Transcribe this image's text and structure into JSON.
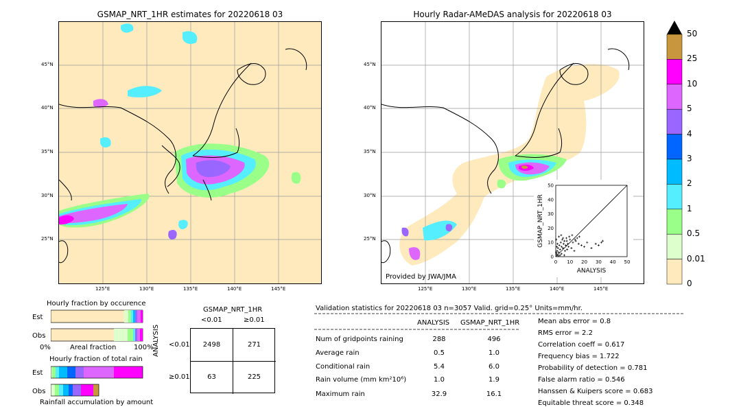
{
  "left_map": {
    "title": "GSMAP_NRT_1HR estimates for 20220618 03",
    "lat_ticks": [
      "45°N",
      "40°N",
      "35°N",
      "30°N",
      "25°N"
    ],
    "lon_ticks": [
      "125°E",
      "130°E",
      "135°E",
      "140°E",
      "145°E"
    ]
  },
  "right_map": {
    "title": "Hourly Radar-AMeDAS analysis for 20220618 03",
    "lat_ticks": [
      "45°N",
      "40°N",
      "35°N",
      "30°N",
      "25°N"
    ],
    "lon_ticks": [
      "125°E",
      "130°E",
      "135°E",
      "140°E",
      "145°E"
    ],
    "credit": "Provided by JWA/JMA"
  },
  "colorbar": {
    "labels": [
      "50",
      "25",
      "10",
      "5",
      "4",
      "3",
      "2",
      "1",
      "0.5",
      "0.01",
      "0"
    ],
    "colors": [
      "#c8963c",
      "#ff00ff",
      "#dd66ff",
      "#9966ff",
      "#0066ff",
      "#00bbff",
      "#55eeff",
      "#99ff88",
      "#ddffcc",
      "#feeabc"
    ]
  },
  "fraction_panel": {
    "occurrence_title": "Hourly fraction by occurence",
    "est_label": "Est",
    "obs_label": "Obs",
    "axis_left": "0%",
    "axis_mid": "Areal fraction",
    "axis_right": "100%",
    "total_title": "Hourly fraction of total rain",
    "est_label2": "Est",
    "obs_label2": "Obs",
    "accum_label": "Rainfall accumulation by amount"
  },
  "contingency": {
    "header": "GSMAP_NRT_1HR",
    "col_lt": "<0.01",
    "col_ge": "≥0.01",
    "row_axis": "ANALYSIS",
    "row_lt": "<0.01",
    "row_ge": "≥0.01",
    "cells": [
      "2498",
      "271",
      "63",
      "225"
    ]
  },
  "validation": {
    "header": "Validation statistics for 20220618 03  n=3057 Valid. grid=0.25° Units=mm/hr.",
    "col1": "ANALYSIS",
    "col2": "GSMAP_NRT_1HR",
    "rows": [
      {
        "label": "Num of gridpoints raining",
        "a": "288",
        "g": "496"
      },
      {
        "label": "Average rain",
        "a": "0.5",
        "g": "1.0"
      },
      {
        "label": "Conditional rain",
        "a": "5.4",
        "g": "6.0"
      },
      {
        "label": "Rain volume (mm km²10⁶)",
        "a": "1.0",
        "g": "1.9"
      },
      {
        "label": "Maximum rain",
        "a": "32.9",
        "g": "16.1"
      }
    ],
    "scores": [
      "Mean abs error =    0.8",
      "RMS error =    2.2",
      "Correlation coeff =  0.617",
      "Frequency bias =  1.722",
      "Probability of detection =  0.781",
      "False alarm ratio =  0.546",
      "Hanssen & Kuipers score =  0.683",
      "Equitable threat score =  0.348"
    ]
  },
  "chart_data": {
    "type": "scatter",
    "xlabel": "ANALYSIS",
    "ylabel": "GSMAP_NRT_1HR",
    "xlim": [
      0,
      50
    ],
    "ylim": [
      0,
      50
    ],
    "x_ticks": [
      "0",
      "10",
      "20",
      "30",
      "40",
      "50"
    ],
    "y_ticks": [
      "0",
      "10",
      "20",
      "30",
      "40",
      "50"
    ],
    "points": [
      [
        0.5,
        2
      ],
      [
        1,
        4
      ],
      [
        1.5,
        6
      ],
      [
        2,
        3
      ],
      [
        2.5,
        8
      ],
      [
        3,
        5
      ],
      [
        3.5,
        10
      ],
      [
        4,
        7
      ],
      [
        4.5,
        12
      ],
      [
        5,
        6
      ],
      [
        5.5,
        9
      ],
      [
        6,
        11
      ],
      [
        6.5,
        4
      ],
      [
        7,
        8
      ],
      [
        7.5,
        13
      ],
      [
        8,
        5
      ],
      [
        8.5,
        9
      ],
      [
        9,
        7
      ],
      [
        10,
        12
      ],
      [
        11,
        6
      ],
      [
        12,
        10
      ],
      [
        13,
        4
      ],
      [
        14,
        11
      ],
      [
        15,
        13
      ],
      [
        16,
        9
      ],
      [
        18,
        8
      ],
      [
        20,
        7
      ],
      [
        22,
        10
      ],
      [
        25,
        6
      ],
      [
        28,
        9
      ],
      [
        30,
        8
      ],
      [
        32,
        10
      ],
      [
        32.9,
        11
      ],
      [
        1,
        1
      ],
      [
        2,
        0.5
      ],
      [
        0.3,
        3
      ],
      [
        0.8,
        7
      ],
      [
        1.2,
        9
      ],
      [
        3,
        1
      ],
      [
        4,
        2
      ],
      [
        6,
        1
      ],
      [
        0.4,
        12
      ],
      [
        2.2,
        14
      ],
      [
        3.8,
        15
      ],
      [
        5.2,
        13
      ],
      [
        7.7,
        11
      ],
      [
        9.5,
        14
      ],
      [
        11.5,
        15
      ],
      [
        13.5,
        12
      ],
      [
        16.5,
        14
      ]
    ]
  }
}
